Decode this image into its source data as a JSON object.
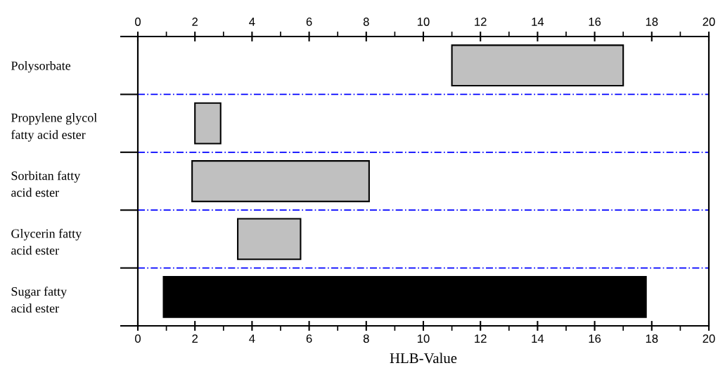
{
  "chart_data": {
    "type": "bar",
    "orientation": "horizontal",
    "xlabel": "HLB-Value",
    "categories": [
      "Polysorbate",
      "Propylene glycol\nfatty acid ester",
      "Sorbitan fatty\nacid ester",
      "Glycerin fatty\nacid ester",
      "Sugar fatty\nacid ester"
    ],
    "base": [
      11,
      2,
      1.9,
      3.5,
      0.9
    ],
    "values": [
      6,
      0.9,
      6.2,
      2.2,
      16.9
    ],
    "colors": [
      "#c0c0c0",
      "#c0c0c0",
      "#c0c0c0",
      "#c0c0c0",
      "#000000"
    ],
    "xlim": [
      0,
      20
    ],
    "xticks": [
      0,
      2,
      4,
      6,
      8,
      10,
      12,
      14,
      16,
      18,
      20
    ],
    "x2lim": [
      0,
      20
    ],
    "x2ticks": [
      0,
      2,
      4,
      6,
      8,
      10,
      12,
      14,
      16,
      18,
      20
    ],
    "grid": "y"
  }
}
